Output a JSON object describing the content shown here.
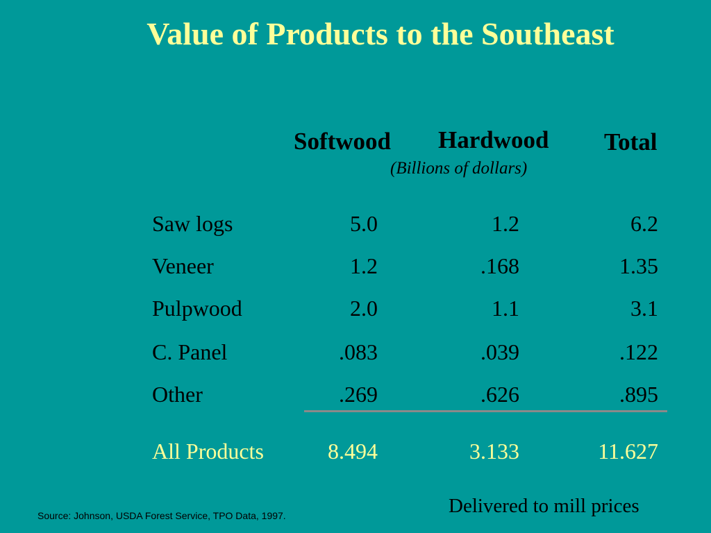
{
  "slide": {
    "title": "Value of Products to the Southeast",
    "units_note": "(Billions of dollars)",
    "footnote": "Delivered to mill prices",
    "source": "Source: Johnson, USDA Forest Service, TPO Data, 1997."
  },
  "table": {
    "columns": [
      "Softwood",
      "Hardwood",
      "Total"
    ],
    "rows": [
      {
        "label": "Saw logs",
        "softwood": "5.0",
        "hardwood": "1.2",
        "total": "6.2"
      },
      {
        "label": "Veneer",
        "softwood": "1.2",
        "hardwood": ".168",
        "total": "1.35"
      },
      {
        "label": "Pulpwood",
        "softwood": "2.0",
        "hardwood": "1.1",
        "total": "3.1"
      },
      {
        "label": "C. Panel",
        "softwood": ".083",
        "hardwood": ".039",
        "total": ".122"
      },
      {
        "label": "Other",
        "softwood": ".269",
        "hardwood": ".626",
        "total": ".895"
      }
    ],
    "totals": {
      "label": "All Products",
      "softwood": "8.494",
      "hardwood": "3.133",
      "total": "11.627"
    }
  },
  "colors": {
    "background": "#009999",
    "title": "#ffff99",
    "totals_row": "#ffff99",
    "divider": "#8a8a8a"
  }
}
